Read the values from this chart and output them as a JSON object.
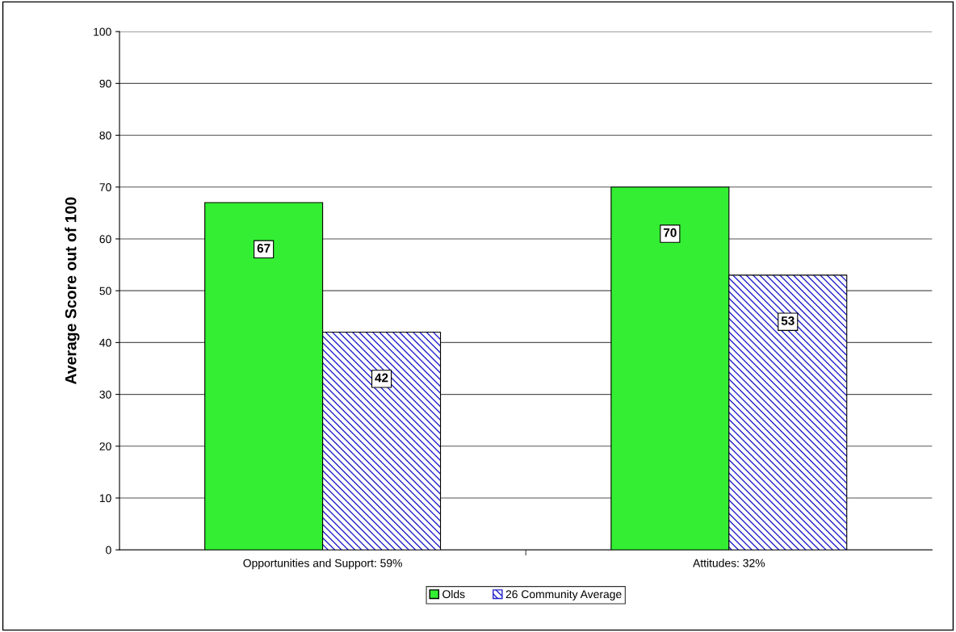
{
  "chart_data": {
    "type": "bar",
    "ylabel": "Average Score out of 100",
    "categories": [
      "Opportunities and Support: 59%",
      "Attitudes: 32%"
    ],
    "series": [
      {
        "name": "Olds",
        "color": "#33ee33",
        "values": [
          67,
          70
        ]
      },
      {
        "name": "26 Community Average",
        "color": "#2222cc",
        "values": [
          42,
          53
        ]
      }
    ],
    "ylim": [
      0,
      100
    ],
    "yticks": [
      0,
      10,
      20,
      30,
      40,
      50,
      60,
      70,
      80,
      90,
      100
    ],
    "grid": "y",
    "legend": "bottom",
    "data_labels": true
  }
}
